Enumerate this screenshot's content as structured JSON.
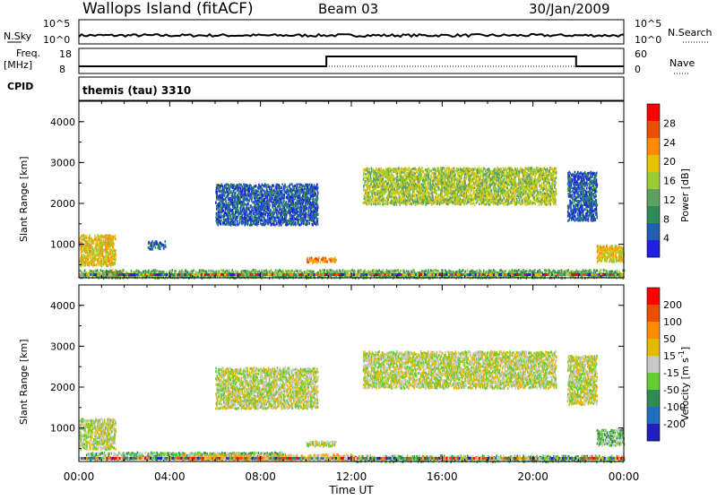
{
  "header": {
    "station": "Wallops Island (fitACF)",
    "beam": "Beam 03",
    "date": "30/Jan/2009"
  },
  "top_panels": {
    "nsky_label": "N.Sky",
    "nsky_ticks": [
      "10^5",
      "10^0"
    ],
    "nsearch_label": "N.Search",
    "nsearch_ticks": [
      "10^5",
      "10^0"
    ],
    "freq_label": "Freq.",
    "freq_unit": "[MHz]",
    "freq_ticks": [
      "18",
      "8"
    ],
    "nave_label": "Nave",
    "nave_ticks": [
      "60",
      "0"
    ],
    "cpid_label": "CPID",
    "cpid_value": "themis (tau) 3310"
  },
  "colors": {
    "power_scale": [
      "#2020e0",
      "#1f5fb0",
      "#2e8b57",
      "#5fa05f",
      "#9acd32",
      "#e6c200",
      "#ff8c00",
      "#e85000",
      "#ff0000"
    ],
    "velocity_scale": [
      "#1f1fc0",
      "#1f6fc0",
      "#2e8b57",
      "#66cc33",
      "#c8c8c8",
      "#e6b800",
      "#ff8c00",
      "#e85000",
      "#ff0000"
    ]
  },
  "chart_data": [
    {
      "type": "heatmap",
      "title": "Power",
      "ylabel": "Slant Range [km]",
      "ylim": [
        180,
        4500
      ],
      "yticks": [
        "1000",
        "2000",
        "3000",
        "4000"
      ],
      "xticks": [
        "00:00",
        "04:00",
        "08:00",
        "12:00",
        "16:00",
        "20:00",
        "00:00"
      ],
      "colorbar_label": "Power [dB]",
      "colorbar_ticks": [
        "4",
        "8",
        "12",
        "16",
        "20",
        "24",
        "28"
      ],
      "regions": [
        {
          "t0": 0.0,
          "t1": 1.6,
          "r0": 500,
          "r1": 1250,
          "level": 5
        },
        {
          "t0": 1.0,
          "t1": 1.8,
          "r0": 250,
          "r1": 380,
          "level": 8
        },
        {
          "t0": 0.0,
          "t1": 24.0,
          "r0": 200,
          "r1": 400,
          "level": 3
        },
        {
          "t0": 3.0,
          "t1": 3.8,
          "r0": 900,
          "r1": 1100,
          "level": 1
        },
        {
          "t0": 6.0,
          "t1": 10.5,
          "r0": 1500,
          "r1": 2500,
          "level": 1
        },
        {
          "t0": 10.0,
          "t1": 11.3,
          "r0": 580,
          "r1": 700,
          "level": 6
        },
        {
          "t0": 12.5,
          "t1": 21.0,
          "r0": 2000,
          "r1": 2900,
          "level": 4
        },
        {
          "t0": 21.5,
          "t1": 22.8,
          "r0": 1600,
          "r1": 2800,
          "level": 1
        },
        {
          "t0": 22.8,
          "t1": 24.0,
          "r0": 600,
          "r1": 1000,
          "level": 5
        }
      ]
    },
    {
      "type": "heatmap",
      "title": "Velocity",
      "xlabel": "Time UT",
      "ylabel": "Slant Range [km]",
      "ylim": [
        180,
        4500
      ],
      "yticks": [
        "1000",
        "2000",
        "3000",
        "4000"
      ],
      "xticks": [
        "00:00",
        "04:00",
        "08:00",
        "12:00",
        "16:00",
        "20:00",
        "00:00"
      ],
      "colorbar_label": "Velocity [m s",
      "colorbar_unit_exp": "-1",
      "colorbar_ticks": [
        "200",
        "100",
        "50",
        "15",
        "-15",
        "-50",
        "-100",
        "-200"
      ],
      "regions": [
        {
          "t0": 0.0,
          "t1": 1.6,
          "r0": 500,
          "r1": 1250,
          "level": 4
        },
        {
          "t0": 0.3,
          "t1": 9.0,
          "r0": 250,
          "r1": 430,
          "level": 3
        },
        {
          "t0": 4.5,
          "t1": 12.0,
          "r0": 230,
          "r1": 380,
          "level": 5
        },
        {
          "t0": 12.0,
          "t1": 24.0,
          "r0": 200,
          "r1": 350,
          "level": 3
        },
        {
          "t0": 6.0,
          "t1": 10.5,
          "r0": 1500,
          "r1": 2500,
          "level": 4
        },
        {
          "t0": 10.0,
          "t1": 11.3,
          "r0": 580,
          "r1": 700,
          "level": 4
        },
        {
          "t0": 12.5,
          "t1": 21.0,
          "r0": 2000,
          "r1": 2900,
          "level": 4
        },
        {
          "t0": 21.5,
          "t1": 22.8,
          "r0": 1600,
          "r1": 2800,
          "level": 4
        },
        {
          "t0": 22.8,
          "t1": 24.0,
          "r0": 600,
          "r1": 1000,
          "level": 3
        }
      ]
    }
  ]
}
